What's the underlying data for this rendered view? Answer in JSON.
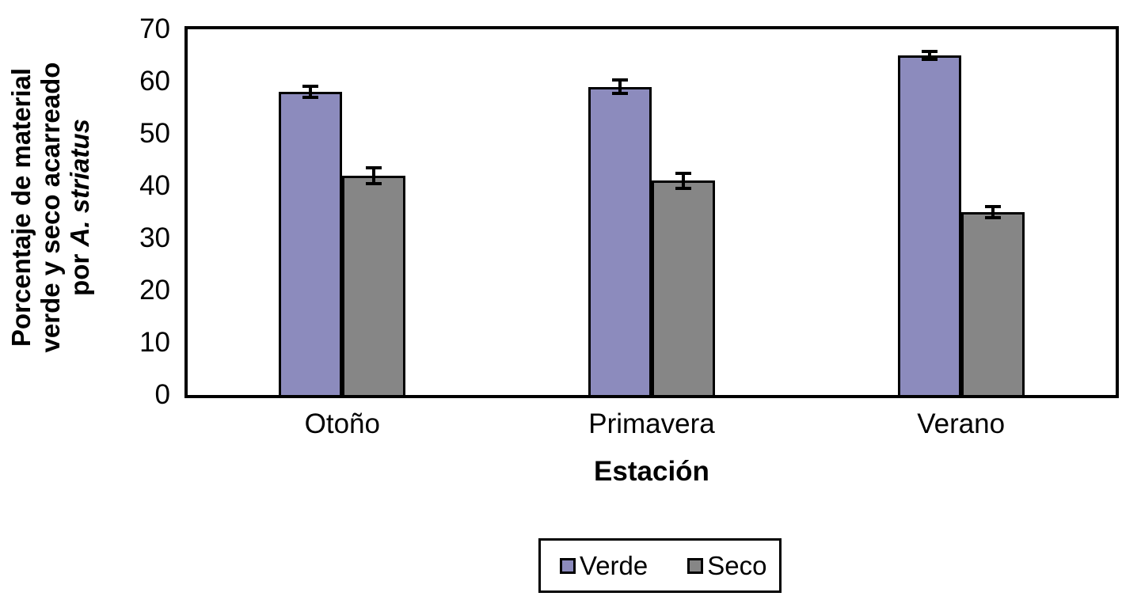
{
  "chart_data": {
    "type": "bar",
    "title": "",
    "categories": [
      "Otoño",
      "Primavera",
      "Verano"
    ],
    "series": [
      {
        "name": "Verde",
        "color": "#8C8BBD",
        "values": [
          58,
          59,
          65
        ],
        "errors": [
          1.1,
          1.3,
          0.7
        ]
      },
      {
        "name": "Seco",
        "color": "#868686",
        "values": [
          42,
          41,
          35
        ],
        "errors": [
          1.5,
          1.5,
          1.0
        ]
      }
    ],
    "xlabel": "Estación",
    "ylabel_lines": [
      "Porcentaje de material",
      "verde y seco acarreado"
    ],
    "ylabel_line3_prefix": "por ",
    "ylabel_line3_italic": "A. striatus",
    "ylim": [
      0,
      70
    ],
    "ytick_step": 10,
    "yticks": [
      0,
      10,
      20,
      30,
      40,
      50,
      60,
      70
    ],
    "grid": false,
    "error_bars": true,
    "legend_position": "bottom",
    "axis_color": "#000000",
    "background_color": "#ffffff"
  }
}
